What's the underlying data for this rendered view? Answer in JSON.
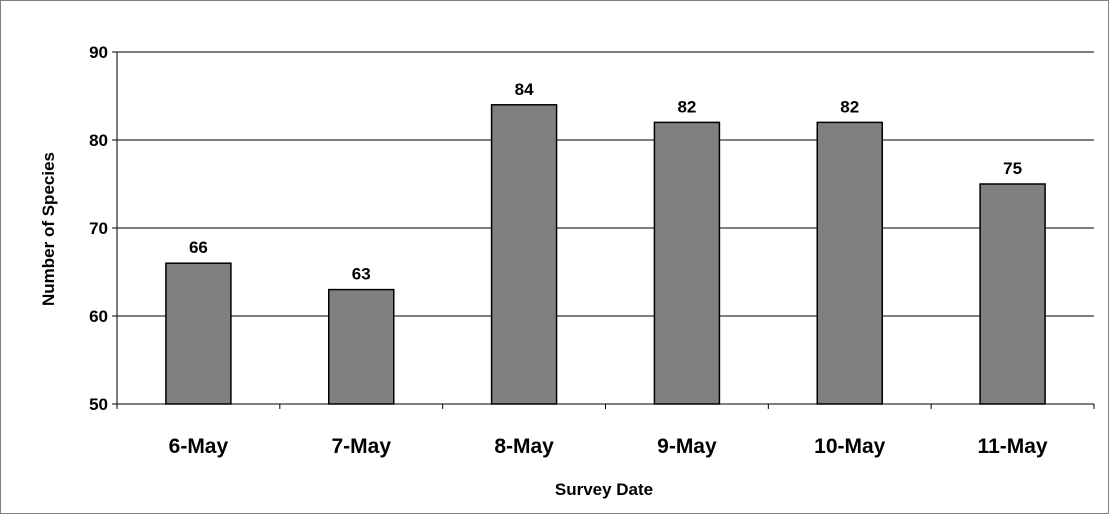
{
  "chart_data": {
    "type": "bar",
    "title": "",
    "xlabel": "Survey Date",
    "ylabel": "Number of Species",
    "categories": [
      "6-May",
      "7-May",
      "8-May",
      "9-May",
      "10-May",
      "11-May"
    ],
    "values": [
      66,
      63,
      84,
      82,
      82,
      75
    ],
    "data_labels": [
      "66",
      "63",
      "84",
      "82",
      "82",
      "75"
    ],
    "ylim": [
      50,
      90
    ],
    "yticks": [
      50,
      60,
      70,
      80,
      90
    ],
    "ytick_labels": [
      "50",
      "60",
      "70",
      "80",
      "90"
    ],
    "grid": "horizontal",
    "legend": "none",
    "colors": {
      "bar_fill": "#808080",
      "bar_stroke": "#000000",
      "grid": "#000000"
    }
  }
}
